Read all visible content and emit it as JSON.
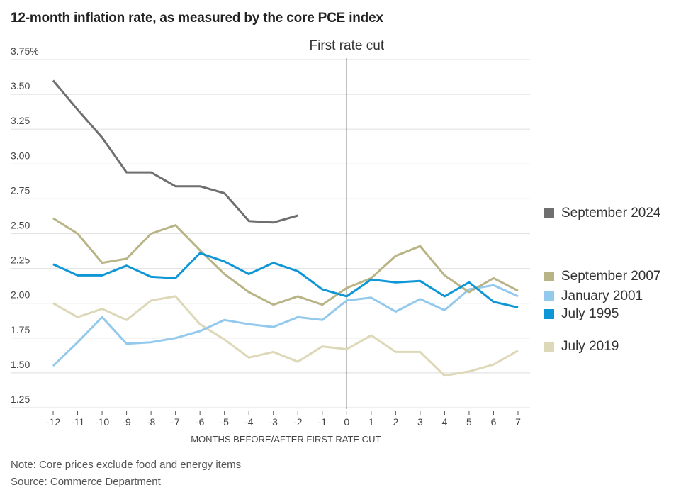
{
  "chart_data": {
    "type": "line",
    "title": "12-month inflation rate, as measured by the core PCE index",
    "xlabel": "MONTHS BEFORE/AFTER FIRST RATE CUT",
    "ylabel": "",
    "x": [
      -12,
      -11,
      -10,
      -9,
      -8,
      -7,
      -6,
      -5,
      -4,
      -3,
      -2,
      -1,
      0,
      1,
      2,
      3,
      4,
      5,
      6,
      7
    ],
    "x_tick_labels": [
      "-12",
      "-11",
      "-10",
      "-9",
      "-8",
      "-7",
      "-6",
      "-5",
      "-4",
      "-3",
      "-2",
      "-1",
      "0",
      "1",
      "2",
      "3",
      "4",
      "5",
      "6",
      "7"
    ],
    "ylim": [
      1.25,
      3.75
    ],
    "y_ticks": [
      1.25,
      1.5,
      1.75,
      2.0,
      2.25,
      2.5,
      2.75,
      3.0,
      3.25,
      3.5,
      3.75
    ],
    "y_tick_labels": [
      "1.25",
      "1.50",
      "1.75",
      "2.00",
      "2.25",
      "2.50",
      "2.75",
      "3.00",
      "3.25",
      "3.50",
      "3.75%"
    ],
    "grid": true,
    "annotations": [
      {
        "x": 0,
        "label": "First rate cut",
        "kind": "vertical-line"
      }
    ],
    "series": [
      {
        "name": "September 2024",
        "color": "#6f6f6f",
        "values": [
          3.6,
          3.39,
          3.19,
          2.94,
          2.94,
          2.84,
          2.84,
          2.79,
          2.59,
          2.58,
          2.63,
          null,
          null,
          null,
          null,
          null,
          null,
          null,
          null,
          null
        ]
      },
      {
        "name": "September 2007",
        "color": "#b9b486",
        "values": [
          2.61,
          2.5,
          2.29,
          2.32,
          2.5,
          2.56,
          2.38,
          2.21,
          2.08,
          1.99,
          2.05,
          1.99,
          2.11,
          2.18,
          2.34,
          2.41,
          2.2,
          2.08,
          2.18,
          2.09
        ]
      },
      {
        "name": "January 2001",
        "color": "#93c9ec",
        "values": [
          1.55,
          1.72,
          1.9,
          1.71,
          1.72,
          1.75,
          1.8,
          1.88,
          1.85,
          1.83,
          1.9,
          1.88,
          2.02,
          2.04,
          1.94,
          2.03,
          1.95,
          2.1,
          2.13,
          2.05
        ]
      },
      {
        "name": "July 1995",
        "color": "#0f96d6",
        "values": [
          2.28,
          2.2,
          2.2,
          2.27,
          2.19,
          2.18,
          2.36,
          2.3,
          2.21,
          2.29,
          2.23,
          2.1,
          2.05,
          2.17,
          2.15,
          2.16,
          2.05,
          2.15,
          2.01,
          1.97
        ]
      },
      {
        "name": "July 2019",
        "color": "#ddd8b8",
        "values": [
          2.0,
          1.9,
          1.96,
          1.88,
          2.02,
          2.05,
          1.85,
          1.74,
          1.61,
          1.65,
          1.58,
          1.69,
          1.67,
          1.77,
          1.65,
          1.65,
          1.48,
          1.51,
          1.56,
          1.66
        ]
      }
    ],
    "legend": {
      "placement": "right",
      "entries": [
        "September 2024",
        "September 2007",
        "January 2001",
        "July 1995",
        "July 2019"
      ]
    }
  },
  "footer": {
    "note": "Note: Core prices exclude food and energy items",
    "source": "Source: Commerce Department"
  }
}
